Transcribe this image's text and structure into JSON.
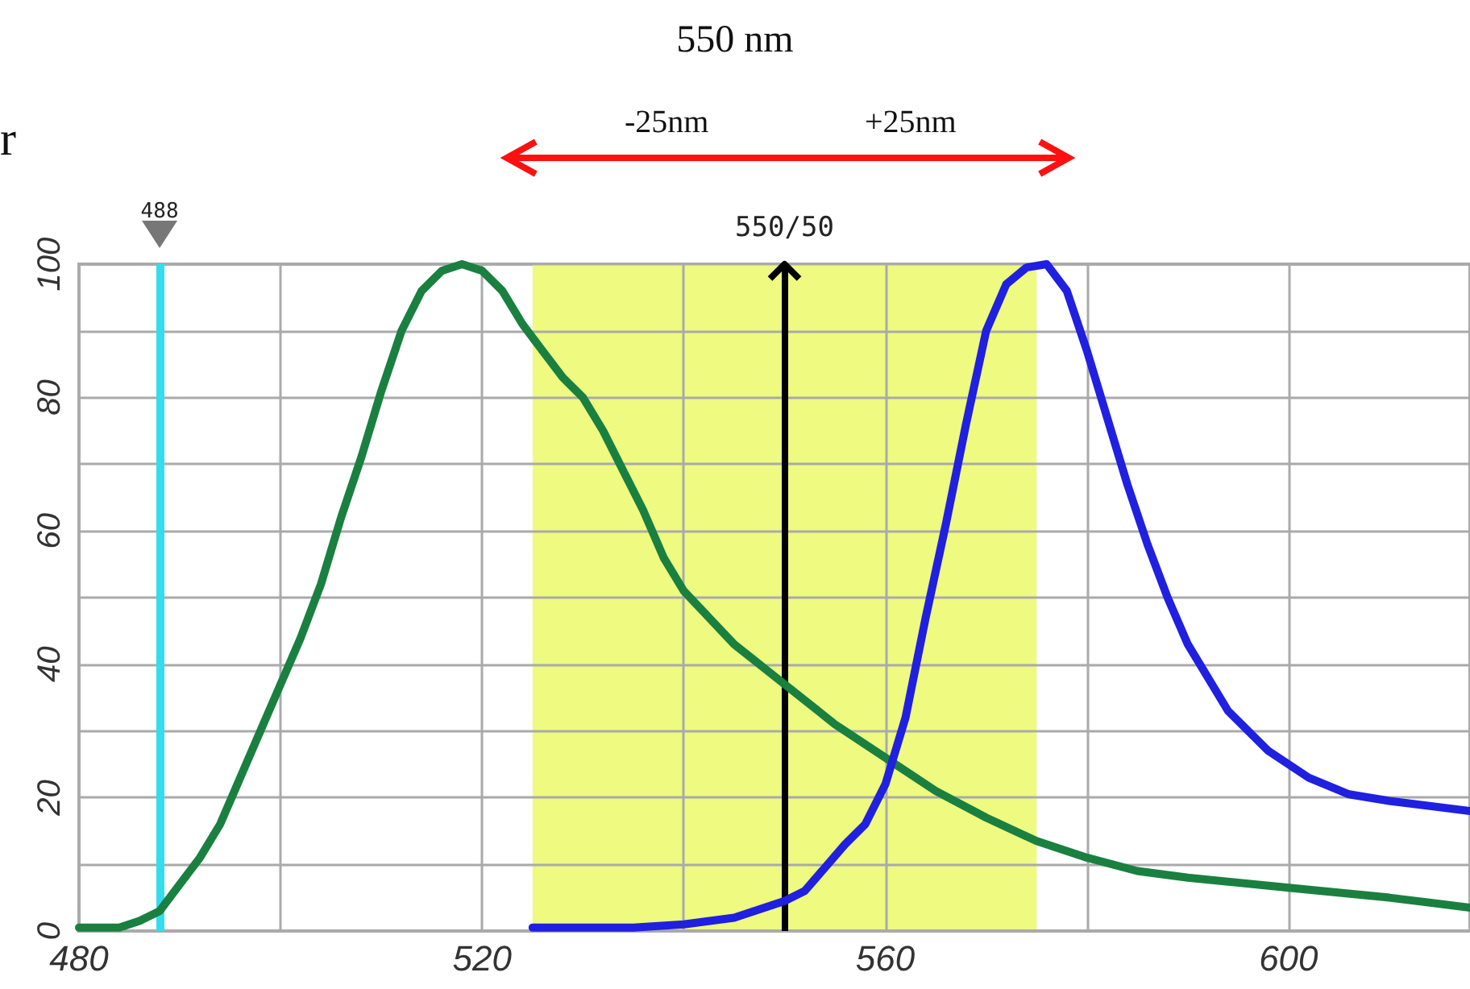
{
  "chart_data": {
    "type": "line",
    "title": "550 nm",
    "annotations": [
      "-25nm",
      "+25nm",
      "r"
    ],
    "xlim": [
      480,
      618
    ],
    "xticks": [
      480,
      {
        "value": 500,
        "label": null
      },
      520,
      {
        "value": 540,
        "label": null
      },
      560,
      {
        "value": 580,
        "label": null
      },
      600
    ],
    "ylim": [
      0,
      100
    ],
    "yticks": [
      0,
      {
        "value": 10,
        "label": null
      },
      20,
      {
        "value": 30,
        "label": null
      },
      40,
      {
        "value": 50,
        "label": null
      },
      60,
      {
        "value": 70,
        "label": null
      },
      80,
      {
        "value": 90,
        "label": null
      },
      100
    ],
    "grid": true,
    "marker": "none",
    "line_style": "solid",
    "series": [
      {
        "color": "#1a8040",
        "x": [
          480,
          484,
          486,
          488,
          490,
          492,
          494,
          496,
          498,
          500,
          502,
          504,
          506,
          508,
          510,
          512,
          514,
          516,
          518,
          520,
          522,
          524,
          526,
          528,
          530,
          532,
          534,
          536,
          538,
          540,
          545,
          550,
          555,
          560,
          565,
          570,
          575,
          580,
          585,
          590,
          600,
          610,
          618
        ],
        "values": [
          0.5,
          0.5,
          1.5,
          3,
          7,
          11,
          16,
          23,
          30,
          37,
          44,
          52,
          62,
          71,
          81,
          90,
          96,
          99,
          100,
          99,
          96,
          91,
          87,
          83,
          80,
          75,
          69,
          63,
          56,
          51,
          43,
          37,
          31,
          26,
          21,
          17,
          13.5,
          11,
          9,
          8,
          6.5,
          5,
          3.5
        ]
      },
      {
        "color": "#2020e0",
        "x": [
          525,
          530,
          535,
          540,
          545,
          550,
          552,
          556,
          558,
          560,
          562,
          564,
          566,
          568,
          570,
          572,
          574,
          576,
          578,
          580,
          582,
          584,
          586,
          588,
          590,
          594,
          598,
          602,
          606,
          610,
          618
        ],
        "values": [
          0.5,
          0.5,
          0.5,
          1,
          2,
          4.5,
          6,
          13,
          16,
          22,
          32,
          47,
          61,
          76,
          90,
          97,
          99.5,
          100,
          96,
          87,
          77,
          67,
          58,
          50,
          43,
          33,
          27,
          23,
          20.5,
          19.5,
          18
        ]
      }
    ],
    "ref_lines": [
      {
        "axis": "x",
        "value": 488,
        "label": "488",
        "color": "#33ddee"
      },
      {
        "axis": "x",
        "value": 550,
        "label": "550/50",
        "color": "#000000"
      }
    ],
    "bands": [
      {
        "axis": "x",
        "from": 525,
        "to": 575,
        "color": "#eefa80"
      }
    ]
  }
}
